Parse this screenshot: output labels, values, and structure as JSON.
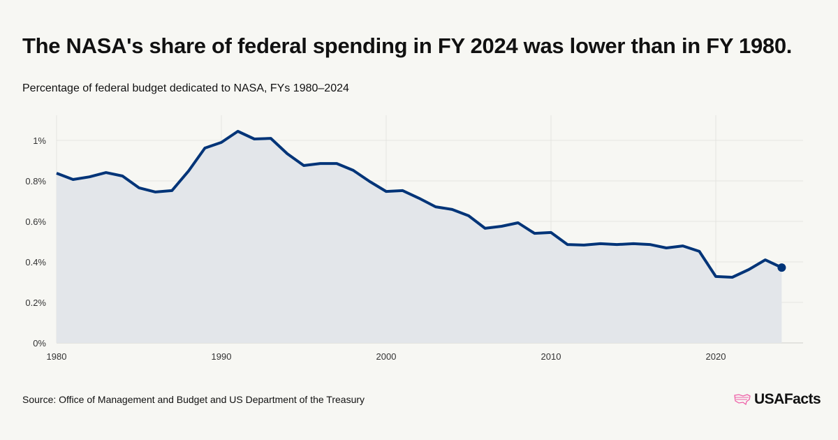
{
  "header": {
    "title": "The NASA's share of federal spending in FY 2024 was lower than in FY 1980.",
    "subtitle": "Percentage of federal budget dedicated to NASA, FYs 1980–2024"
  },
  "footer": {
    "source": "Source: Office of Management and Budget and US Department of the Treasury",
    "logo_text": "USAFacts"
  },
  "colors": {
    "line": "#003478",
    "area": "#e3e6ea",
    "grid": "#e4e4e0",
    "logo_accent": "#ee5fa7"
  },
  "chart_data": {
    "type": "area",
    "title": "The NASA's share of federal spending in FY 2024 was lower than in FY 1980.",
    "subtitle": "Percentage of federal budget dedicated to NASA, FYs 1980–2024",
    "xlabel": "",
    "ylabel": "",
    "xlim": [
      1980,
      2025
    ],
    "ylim": [
      0,
      1.1
    ],
    "grid": true,
    "x_ticks": [
      1980,
      1990,
      2000,
      2010,
      2020
    ],
    "x_tick_labels": [
      "1980",
      "1990",
      "2000",
      "2010",
      "2020"
    ],
    "y_ticks": [
      0,
      0.2,
      0.4,
      0.6,
      0.8,
      1.0
    ],
    "y_tick_labels": [
      "0%",
      "0.2%",
      "0.4%",
      "0.6%",
      "0.8%",
      "1%"
    ],
    "x": [
      1980,
      1981,
      1982,
      1983,
      1984,
      1985,
      1986,
      1987,
      1988,
      1989,
      1990,
      1991,
      1992,
      1993,
      1994,
      1995,
      1996,
      1997,
      1998,
      1999,
      2000,
      2001,
      2002,
      2003,
      2004,
      2005,
      2006,
      2007,
      2008,
      2009,
      2010,
      2011,
      2012,
      2013,
      2014,
      2015,
      2016,
      2017,
      2018,
      2019,
      2020,
      2021,
      2022,
      2023,
      2024
    ],
    "values": [
      0.838,
      0.807,
      0.82,
      0.841,
      0.824,
      0.766,
      0.745,
      0.752,
      0.848,
      0.962,
      0.99,
      1.045,
      1.007,
      1.01,
      0.934,
      0.876,
      0.886,
      0.886,
      0.852,
      0.797,
      0.748,
      0.752,
      0.714,
      0.672,
      0.659,
      0.628,
      0.566,
      0.576,
      0.593,
      0.541,
      0.545,
      0.486,
      0.483,
      0.49,
      0.486,
      0.49,
      0.486,
      0.469,
      0.479,
      0.452,
      0.328,
      0.324,
      0.362,
      0.41,
      0.372
    ],
    "unit": "%"
  }
}
